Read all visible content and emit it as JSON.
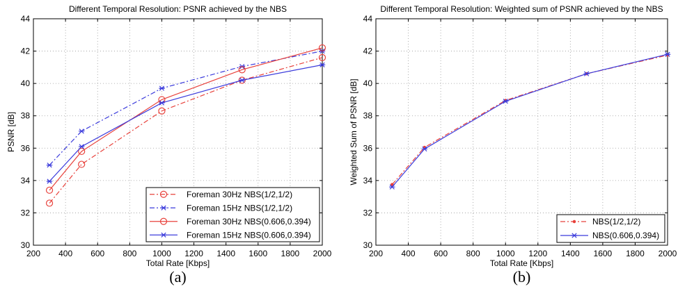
{
  "chart_data": [
    {
      "type": "line",
      "title": "Different Temporal Resolution: PSNR achieved by the NBS",
      "xlabel": "Total Rate [Kbps]",
      "ylabel": "PSNR [dB]",
      "xlim": [
        200,
        2000
      ],
      "ylim": [
        30,
        44
      ],
      "xticks": [
        "200",
        "400",
        "600",
        "800",
        "1000",
        "1200",
        "1400",
        "1600",
        "1800",
        "2000"
      ],
      "yticks": [
        "30",
        "32",
        "34",
        "36",
        "38",
        "40",
        "42",
        "44"
      ],
      "grid": true,
      "legend_position": "bottom-right",
      "caption": "(a)",
      "x": [
        300,
        500,
        1000,
        1500,
        2000
      ],
      "series": [
        {
          "name": "Foreman 30Hz NBS(1/2,1/2)",
          "color": "#e8413b",
          "dash": "dashdot",
          "marker": "circle",
          "values": [
            32.6,
            35.0,
            38.3,
            40.2,
            41.6
          ]
        },
        {
          "name": "Foreman 15Hz NBS(1/2,1/2)",
          "color": "#3b3bdc",
          "dash": "dashdot",
          "marker": "star",
          "values": [
            34.95,
            37.05,
            39.7,
            41.05,
            42.0
          ]
        },
        {
          "name": "Foreman 30Hz NBS(0.606,0.394)",
          "color": "#e8413b",
          "dash": "solid",
          "marker": "circle",
          "values": [
            33.4,
            35.8,
            39.0,
            40.85,
            42.2
          ]
        },
        {
          "name": "Foreman 15Hz NBS(0.606,0.394)",
          "color": "#3b3bdc",
          "dash": "solid",
          "marker": "star",
          "values": [
            33.95,
            36.1,
            38.8,
            40.2,
            41.15
          ]
        }
      ]
    },
    {
      "type": "line",
      "title": "Different Temporal Resolution: Weighted sum of PSNR achieved by the NBS",
      "xlabel": "Total Rate [Kbps]",
      "ylabel": "Weighted Sum of PSNR [dB]",
      "xlim": [
        200,
        2000
      ],
      "ylim": [
        30,
        44
      ],
      "xticks": [
        "200",
        "400",
        "600",
        "800",
        "1000",
        "1200",
        "1400",
        "1600",
        "1800",
        "2000"
      ],
      "yticks": [
        "30",
        "32",
        "34",
        "36",
        "38",
        "40",
        "42",
        "44"
      ],
      "grid": true,
      "legend_position": "bottom-right",
      "caption": "(b)",
      "x": [
        300,
        500,
        1000,
        1500,
        2000
      ],
      "series": [
        {
          "name": "NBS(1/2,1/2)",
          "color": "#e8413b",
          "dash": "dashdot",
          "marker": "dot",
          "values": [
            33.75,
            36.05,
            38.95,
            40.6,
            41.75
          ]
        },
        {
          "name": "NBS(0.606,0.394)",
          "color": "#3b3bdc",
          "dash": "solid",
          "marker": "star",
          "values": [
            33.6,
            35.95,
            38.9,
            40.6,
            41.8
          ]
        }
      ]
    }
  ]
}
